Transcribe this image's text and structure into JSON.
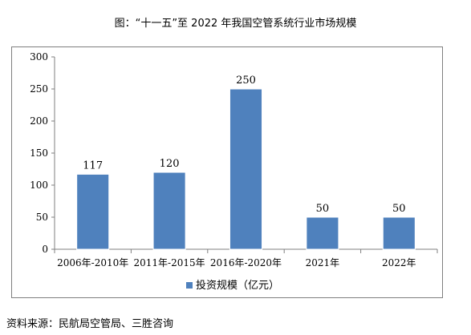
{
  "title": "图：“十一五”至 2022 年我国空管系统行业市场规模",
  "source": "资料来源：民航局空管局、三胜咨询",
  "colors": {
    "bar": "#4f81bd",
    "axis": "#7f7f7f"
  },
  "chart_data": {
    "type": "bar",
    "categories": [
      "2006年-2010年",
      "2011年-2015年",
      "2016年-2020年",
      "2021年",
      "2022年"
    ],
    "series": [
      {
        "name": "投资规模（亿元）",
        "values": [
          117,
          120,
          250,
          50,
          50
        ]
      }
    ],
    "data_labels": [
      "117",
      "120",
      "250",
      "50",
      "50"
    ],
    "yticks": [
      "0",
      "50",
      "100",
      "150",
      "200",
      "250",
      "300"
    ],
    "ylim": [
      0,
      300
    ],
    "grid": false,
    "legend_position": "bottom"
  }
}
